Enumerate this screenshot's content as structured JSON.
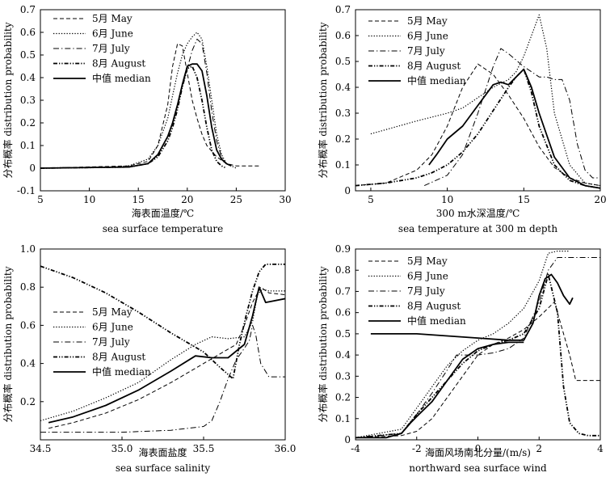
{
  "chart_data": [
    {
      "type": "line",
      "xlabel": "海表面温度/℃",
      "xlabel_en": "sea surface temperature",
      "ylabel": "分布概率 distribution probability",
      "xlim": [
        5,
        30
      ],
      "ylim": [
        -0.1,
        0.7
      ],
      "xticks": [
        5,
        10,
        15,
        20,
        25,
        30
      ],
      "xtick_labels": [
        "5",
        "10",
        "15",
        "20",
        "25",
        "30"
      ],
      "yticks": [
        -0.1,
        0,
        0.1,
        0.2,
        0.3,
        0.4,
        0.5,
        0.6,
        0.7
      ],
      "ytick_labels": [
        "-0.1",
        "0",
        "0.1",
        "0.2",
        "0.3",
        "0.4",
        "0.5",
        "0.6",
        "0.7"
      ],
      "legend_position": "top-left",
      "series": [
        {
          "name": "5月 May",
          "style": "dashed",
          "x": [
            5,
            14,
            16,
            17,
            18,
            18.5,
            19,
            19.5,
            20,
            20.5,
            21,
            21.5,
            22,
            23,
            24,
            25,
            26,
            27,
            27.5
          ],
          "y": [
            0,
            0.01,
            0.03,
            0.1,
            0.28,
            0.45,
            0.55,
            0.54,
            0.42,
            0.3,
            0.22,
            0.15,
            0.1,
            0.05,
            0.02,
            0.01,
            0.01,
            0.01,
            0.01
          ]
        },
        {
          "name": "6月 June",
          "style": "dotted",
          "x": [
            5,
            12,
            14,
            16,
            17,
            18,
            18.5,
            19,
            19.5,
            20,
            20.5,
            21,
            21.5,
            22,
            22.5,
            23,
            23.5,
            24,
            24.5,
            25
          ],
          "y": [
            0,
            0.005,
            0.01,
            0.04,
            0.1,
            0.22,
            0.32,
            0.42,
            0.5,
            0.55,
            0.58,
            0.6,
            0.57,
            0.45,
            0.3,
            0.15,
            0.06,
            0.02,
            0.01,
            0.0
          ]
        },
        {
          "name": "7月 July",
          "style": "dashdot",
          "x": [
            5,
            14,
            16,
            17,
            18,
            18.5,
            19,
            19.5,
            20,
            20.5,
            21,
            21.5,
            22,
            22.5,
            23,
            23.5,
            24,
            24.5
          ],
          "y": [
            0,
            0.005,
            0.02,
            0.06,
            0.14,
            0.2,
            0.28,
            0.36,
            0.44,
            0.52,
            0.57,
            0.55,
            0.42,
            0.25,
            0.12,
            0.05,
            0.02,
            0.01
          ]
        },
        {
          "name": "8月 August",
          "style": "dashdotdot",
          "x": [
            5,
            14,
            16,
            17,
            18,
            18.5,
            19,
            19.5,
            20,
            20.5,
            21,
            21.5,
            22,
            22.5,
            23,
            23.5,
            24
          ],
          "y": [
            0,
            0.005,
            0.02,
            0.05,
            0.12,
            0.18,
            0.26,
            0.36,
            0.44,
            0.45,
            0.4,
            0.3,
            0.18,
            0.08,
            0.03,
            0.01,
            0.0
          ]
        },
        {
          "name": "中值 median",
          "style": "solid",
          "x": [
            5,
            14,
            16,
            17,
            18,
            18.5,
            19,
            19.5,
            20,
            20.5,
            21,
            21.5,
            22,
            22.5,
            23,
            23.5,
            24,
            24.5
          ],
          "y": [
            0,
            0.005,
            0.02,
            0.06,
            0.14,
            0.2,
            0.28,
            0.37,
            0.45,
            0.46,
            0.46,
            0.43,
            0.32,
            0.18,
            0.08,
            0.04,
            0.02,
            0.01
          ]
        }
      ]
    },
    {
      "type": "line",
      "xlabel": "300 m水深温度/℃",
      "xlabel_en": "sea temperature at 300 m depth",
      "ylabel": "分布概率 distribution probability",
      "xlim": [
        4,
        20
      ],
      "ylim": [
        0,
        0.7
      ],
      "xticks": [
        5,
        10,
        15,
        20
      ],
      "xtick_labels": [
        "5",
        "10",
        "15",
        "20"
      ],
      "yticks": [
        0,
        0.1,
        0.2,
        0.3,
        0.4,
        0.5,
        0.6,
        0.7
      ],
      "ytick_labels": [
        "0",
        "0.1",
        "0.2",
        "0.3",
        "0.4",
        "0.5",
        "0.6",
        "0.7"
      ],
      "legend_position": "top-left",
      "series": [
        {
          "name": "5月 May",
          "style": "dashed",
          "x": [
            4,
            6,
            8,
            9,
            10,
            11,
            12,
            13,
            14,
            15,
            16,
            17,
            18,
            19,
            20
          ],
          "y": [
            0.02,
            0.03,
            0.08,
            0.14,
            0.25,
            0.4,
            0.49,
            0.45,
            0.37,
            0.28,
            0.17,
            0.09,
            0.05,
            0.03,
            0.02
          ]
        },
        {
          "name": "6月 June",
          "style": "dotted",
          "x": [
            5,
            8,
            10,
            11,
            12,
            13,
            14,
            14.5,
            15,
            15.5,
            16,
            16.5,
            17,
            18,
            19,
            20
          ],
          "y": [
            0.22,
            0.27,
            0.3,
            0.32,
            0.36,
            0.4,
            0.43,
            0.46,
            0.52,
            0.6,
            0.68,
            0.55,
            0.3,
            0.1,
            0.03,
            0.02
          ]
        },
        {
          "name": "7月 July",
          "style": "dashdot",
          "x": [
            8.5,
            10,
            11,
            12,
            13,
            13.5,
            14,
            15,
            16,
            16.5,
            17,
            17.5,
            18,
            18.5,
            19,
            19.5,
            20
          ],
          "y": [
            0.02,
            0.06,
            0.14,
            0.3,
            0.48,
            0.55,
            0.53,
            0.48,
            0.44,
            0.44,
            0.43,
            0.43,
            0.35,
            0.18,
            0.08,
            0.05,
            0.05
          ]
        },
        {
          "name": "8月 August",
          "style": "dashdotdot",
          "x": [
            4,
            6,
            8,
            9,
            10,
            11,
            12,
            13,
            14,
            14.5,
            15,
            15.5,
            16,
            17,
            18,
            19,
            20
          ],
          "y": [
            0.02,
            0.03,
            0.05,
            0.07,
            0.1,
            0.15,
            0.22,
            0.31,
            0.4,
            0.44,
            0.47,
            0.38,
            0.25,
            0.1,
            0.04,
            0.02,
            0.01
          ]
        },
        {
          "name": "中值 median",
          "style": "solid",
          "x": [
            8.8,
            9.3,
            10,
            11,
            12,
            13,
            13.5,
            14,
            14.5,
            15,
            15.5,
            16,
            17,
            18,
            19,
            20
          ],
          "y": [
            0.1,
            0.14,
            0.2,
            0.25,
            0.33,
            0.41,
            0.42,
            0.41,
            0.44,
            0.47,
            0.4,
            0.3,
            0.13,
            0.05,
            0.02,
            0.01
          ]
        }
      ]
    },
    {
      "type": "line",
      "xlabel": "海表面盐度",
      "xlabel_en": "sea surface salinity",
      "ylabel": "分布概率 distribution probability",
      "xlim": [
        34.5,
        36.0
      ],
      "ylim": [
        0,
        1.0
      ],
      "xticks": [
        34.5,
        35.0,
        35.5,
        36.0
      ],
      "xtick_labels": [
        "34.5",
        "35.0",
        "35.5",
        "36.0"
      ],
      "yticks": [
        0.2,
        0.4,
        0.6,
        0.8,
        1.0
      ],
      "ytick_labels": [
        "0.2",
        "0.4",
        "0.6",
        "0.8",
        "1.0"
      ],
      "legend_position": "middle-left",
      "series": [
        {
          "name": "5月 May",
          "style": "dashed",
          "x": [
            34.55,
            34.7,
            34.9,
            35.1,
            35.3,
            35.5,
            35.6,
            35.7,
            35.75,
            35.8,
            35.85,
            35.9,
            36.0
          ],
          "y": [
            0.06,
            0.09,
            0.14,
            0.21,
            0.3,
            0.4,
            0.45,
            0.5,
            0.6,
            0.72,
            0.8,
            0.77,
            0.76
          ]
        },
        {
          "name": "6月 June",
          "style": "dotted",
          "x": [
            34.5,
            34.7,
            34.9,
            35.1,
            35.3,
            35.45,
            35.55,
            35.65,
            35.75,
            35.8,
            35.83,
            35.86,
            35.9,
            36.0
          ],
          "y": [
            0.1,
            0.15,
            0.22,
            0.3,
            0.42,
            0.5,
            0.54,
            0.53,
            0.54,
            0.62,
            0.76,
            0.79,
            0.78,
            0.78
          ]
        },
        {
          "name": "7月 July",
          "style": "dashdot",
          "x": [
            34.5,
            35.0,
            35.3,
            35.5,
            35.55,
            35.6,
            35.65,
            35.7,
            35.75,
            35.78,
            35.8,
            35.82,
            35.85,
            35.9,
            36.0
          ],
          "y": [
            0.04,
            0.04,
            0.05,
            0.07,
            0.1,
            0.2,
            0.32,
            0.42,
            0.48,
            0.52,
            0.6,
            0.55,
            0.4,
            0.33,
            0.33
          ]
        },
        {
          "name": "8月 August",
          "style": "dashdotdot",
          "x": [
            34.5,
            34.7,
            34.9,
            35.1,
            35.3,
            35.5,
            35.6,
            35.68,
            35.72,
            35.76,
            35.8,
            35.84,
            35.88,
            36.0
          ],
          "y": [
            0.91,
            0.85,
            0.77,
            0.67,
            0.56,
            0.46,
            0.38,
            0.32,
            0.5,
            0.65,
            0.78,
            0.88,
            0.92,
            0.92
          ]
        },
        {
          "name": "中值 median",
          "style": "solid",
          "x": [
            34.55,
            34.7,
            34.9,
            35.1,
            35.3,
            35.45,
            35.55,
            35.65,
            35.75,
            35.8,
            35.84,
            35.88,
            36.0
          ],
          "y": [
            0.09,
            0.12,
            0.18,
            0.26,
            0.36,
            0.44,
            0.43,
            0.43,
            0.5,
            0.65,
            0.8,
            0.72,
            0.74
          ]
        }
      ]
    },
    {
      "type": "line",
      "xlabel": "海面风场南北分量/(m/s)",
      "xlabel_en": "northward sea surface wind",
      "ylabel": "分布概率 distribution probability",
      "xlim": [
        -4,
        4
      ],
      "ylim": [
        0,
        0.9
      ],
      "xticks": [
        -4,
        -2,
        0,
        2,
        4
      ],
      "xtick_labels": [
        "-4",
        "-2",
        "0",
        "2",
        "4"
      ],
      "yticks": [
        0,
        0.1,
        0.2,
        0.3,
        0.4,
        0.5,
        0.6,
        0.7,
        0.8,
        0.9
      ],
      "ytick_labels": [
        "0",
        "0.1",
        "0.2",
        "0.3",
        "0.4",
        "0.5",
        "0.6",
        "0.7",
        "0.8",
        "0.9"
      ],
      "legend_position": "top-left",
      "series": [
        {
          "name": "5月 May",
          "style": "dashed",
          "x": [
            -4,
            -2.5,
            -2,
            -1.5,
            -1,
            -0.5,
            0,
            0.5,
            1,
            1.5,
            2,
            2.5,
            3,
            3.2,
            3.5,
            4
          ],
          "y": [
            0.01,
            0.02,
            0.04,
            0.1,
            0.2,
            0.3,
            0.4,
            0.45,
            0.48,
            0.52,
            0.58,
            0.65,
            0.4,
            0.28,
            0.28,
            0.28
          ]
        },
        {
          "name": "6月 June",
          "style": "dotted",
          "x": [
            -4,
            -2.5,
            -2,
            -1.5,
            -1,
            -0.5,
            0,
            0.5,
            1,
            1.5,
            2,
            2.3,
            2.6,
            3
          ],
          "y": [
            0.01,
            0.05,
            0.15,
            0.25,
            0.35,
            0.42,
            0.47,
            0.5,
            0.55,
            0.62,
            0.75,
            0.88,
            0.89,
            0.89
          ]
        },
        {
          "name": "7月 July",
          "style": "dashdot",
          "x": [
            -4,
            -2.5,
            -2,
            -1.5,
            -1,
            -0.7,
            -0.5,
            0,
            0.5,
            1,
            1.5,
            2,
            2.3,
            2.6,
            3,
            3.5,
            4
          ],
          "y": [
            0.01,
            0.03,
            0.12,
            0.22,
            0.33,
            0.4,
            0.4,
            0.4,
            0.41,
            0.43,
            0.48,
            0.65,
            0.8,
            0.86,
            0.86,
            0.86,
            0.86
          ]
        },
        {
          "name": "8月 August",
          "style": "dashdotdot",
          "x": [
            -4,
            -2.5,
            -2,
            -1.5,
            -1,
            -0.5,
            0,
            0.5,
            1,
            1.5,
            2,
            2.3,
            2.6,
            2.8,
            3,
            3.3,
            3.6,
            4
          ],
          "y": [
            0.01,
            0.03,
            0.12,
            0.2,
            0.28,
            0.36,
            0.42,
            0.45,
            0.47,
            0.5,
            0.62,
            0.78,
            0.6,
            0.25,
            0.08,
            0.03,
            0.02,
            0.02
          ]
        },
        {
          "name": "中值 median",
          "style": "solid",
          "x": [
            -3.5,
            -3,
            -2,
            -1,
            0,
            1,
            1.5,
            1.8,
            2,
            2.2,
            2.4,
            2.6,
            2.8,
            3,
            3.1
          ],
          "y": [
            0.5,
            0.5,
            0.5,
            0.49,
            0.48,
            0.47,
            0.47,
            0.55,
            0.68,
            0.76,
            0.78,
            0.74,
            0.68,
            0.64,
            0.67
          ]
        },
        {
          "name": "",
          "style": "solid",
          "x": [
            -4,
            -3,
            -2.5,
            -2.2,
            -2,
            -1.5,
            -1,
            -0.5,
            0,
            0.5,
            1,
            1.5
          ],
          "y": [
            0.01,
            0.01,
            0.03,
            0.08,
            0.11,
            0.18,
            0.28,
            0.38,
            0.43,
            0.45,
            0.46,
            0.46
          ]
        }
      ]
    }
  ]
}
